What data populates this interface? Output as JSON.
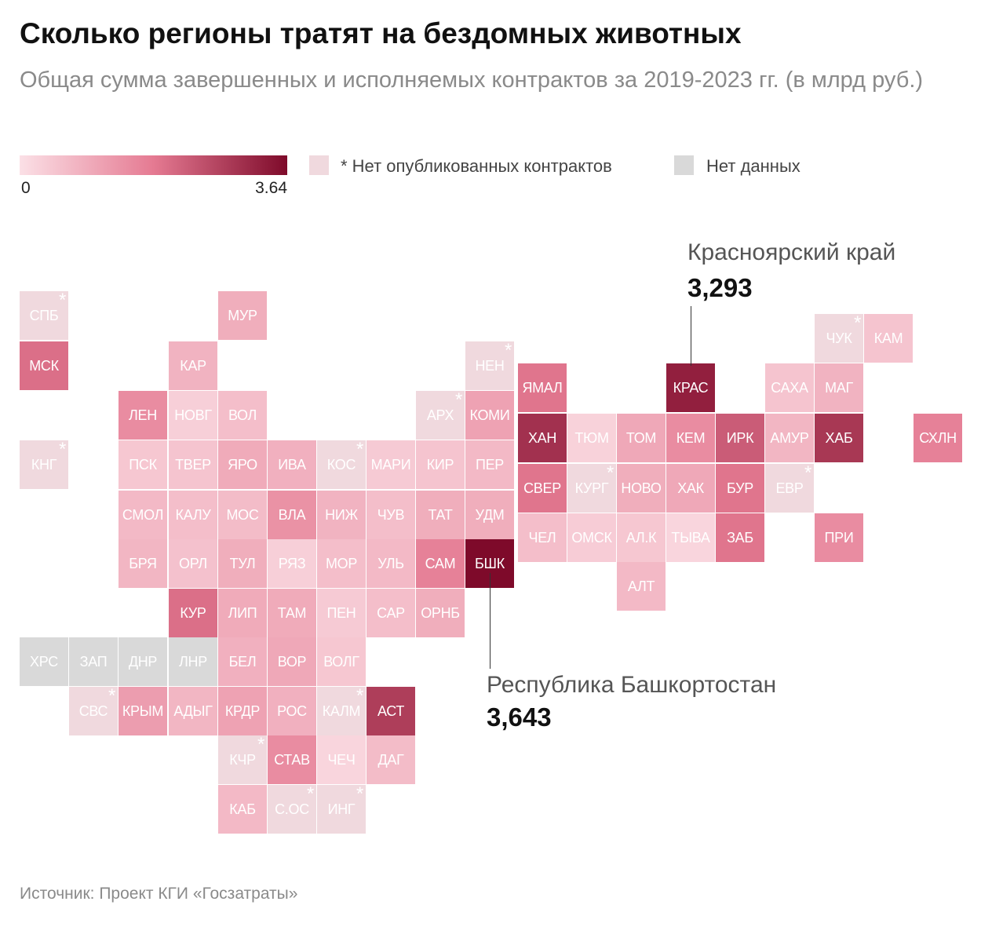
{
  "title": "Сколько регионы тратят на бездомных животных",
  "subtitle": "Общая сумма завершенных и исполняемых контрактов за 2019-2023 гг. (в млрд руб.)",
  "legend": {
    "min_label": "0",
    "max_label": "3.64",
    "no_contracts_label": "* Нет опубликованных контрактов",
    "no_data_label": "Нет данных",
    "colors": {
      "scale_low": "#fbe0e6",
      "scale_mid": "#e57a92",
      "scale_high": "#7e0a2a",
      "no_contracts": "#f0d9de",
      "no_data": "#d9d9d9"
    }
  },
  "callouts": {
    "krasnoyarsk": {
      "name": "Красноярский край",
      "value": "3,293"
    },
    "bashkortostan": {
      "name": "Республика Башкортостан",
      "value": "3,643"
    }
  },
  "source": "Источник: Проект КГИ «Госзатраты»",
  "chart_data": {
    "type": "heatmap",
    "value_range": [
      0,
      3.64
    ],
    "regions": [
      {
        "label": "СПБ",
        "status": "no_contracts",
        "value": 0
      },
      {
        "label": "МУР",
        "status": "data",
        "value": 0.9
      },
      {
        "label": "МСК",
        "status": "data",
        "value": 2.0
      },
      {
        "label": "КАР",
        "status": "data",
        "value": 0.8
      },
      {
        "label": "ЛЕН",
        "status": "data",
        "value": 1.5
      },
      {
        "label": "НОВГ",
        "status": "data",
        "value": 0.3
      },
      {
        "label": "ВОЛ",
        "status": "data",
        "value": 0.6
      },
      {
        "label": "КНГ",
        "status": "no_contracts",
        "value": 0
      },
      {
        "label": "ПСК",
        "status": "data",
        "value": 0.45
      },
      {
        "label": "ТВЕР",
        "status": "data",
        "value": 0.5
      },
      {
        "label": "ЯРО",
        "status": "data",
        "value": 0.95
      },
      {
        "label": "ИВА",
        "status": "data",
        "value": 0.85
      },
      {
        "label": "КОС",
        "status": "no_contracts",
        "value": 0
      },
      {
        "label": "МАРИ",
        "status": "data",
        "value": 0.4
      },
      {
        "label": "КИР",
        "status": "data",
        "value": 0.5
      },
      {
        "label": "ПЕР",
        "status": "data",
        "value": 0.7
      },
      {
        "label": "СМОЛ",
        "status": "data",
        "value": 0.7
      },
      {
        "label": "КАЛУ",
        "status": "data",
        "value": 0.6
      },
      {
        "label": "МОС",
        "status": "data",
        "value": 0.65
      },
      {
        "label": "ВЛА",
        "status": "data",
        "value": 1.4
      },
      {
        "label": "НИЖ",
        "status": "data",
        "value": 0.8
      },
      {
        "label": "ЧУВ",
        "status": "data",
        "value": 0.6
      },
      {
        "label": "ТАТ",
        "status": "data",
        "value": 0.9
      },
      {
        "label": "УДМ",
        "status": "data",
        "value": 0.9
      },
      {
        "label": "БРЯ",
        "status": "data",
        "value": 0.75
      },
      {
        "label": "ОРЛ",
        "status": "data",
        "value": 0.55
      },
      {
        "label": "ТУЛ",
        "status": "data",
        "value": 0.9
      },
      {
        "label": "РЯЗ",
        "status": "data",
        "value": 0.3
      },
      {
        "label": "МОР",
        "status": "data",
        "value": 0.6
      },
      {
        "label": "УЛЬ",
        "status": "data",
        "value": 0.7
      },
      {
        "label": "САМ",
        "status": "data",
        "value": 1.7
      },
      {
        "label": "БШК",
        "status": "data",
        "value": 3.643
      },
      {
        "label": "КУР",
        "status": "data",
        "value": 2.0
      },
      {
        "label": "ЛИП",
        "status": "data",
        "value": 0.95
      },
      {
        "label": "ТАМ",
        "status": "data",
        "value": 0.95
      },
      {
        "label": "ПЕН",
        "status": "data",
        "value": 0.4
      },
      {
        "label": "САР",
        "status": "data",
        "value": 0.6
      },
      {
        "label": "ОРНБ",
        "status": "data",
        "value": 0.9
      },
      {
        "label": "ХРС",
        "status": "no_data",
        "value": null
      },
      {
        "label": "ЗАП",
        "status": "no_data",
        "value": null
      },
      {
        "label": "ДНР",
        "status": "no_data",
        "value": null
      },
      {
        "label": "ЛНР",
        "status": "no_data",
        "value": null
      },
      {
        "label": "БЕЛ",
        "status": "data",
        "value": 0.85
      },
      {
        "label": "ВОР",
        "status": "data",
        "value": 1.0
      },
      {
        "label": "ВОЛГ",
        "status": "data",
        "value": 0.45
      },
      {
        "label": "СВС",
        "status": "no_contracts",
        "value": 0
      },
      {
        "label": "КРЫМ",
        "status": "data",
        "value": 1.2
      },
      {
        "label": "АДЫГ",
        "status": "data",
        "value": 0.75
      },
      {
        "label": "КРДР",
        "status": "data",
        "value": 1.1
      },
      {
        "label": "РОС",
        "status": "data",
        "value": 0.85
      },
      {
        "label": "КАЛМ",
        "status": "no_contracts",
        "value": 0
      },
      {
        "label": "АСТ",
        "status": "data",
        "value": 2.8
      },
      {
        "label": "КЧР",
        "status": "no_contracts",
        "value": 0
      },
      {
        "label": "СТАВ",
        "status": "data",
        "value": 1.5
      },
      {
        "label": "ЧЕЧ",
        "status": "data",
        "value": 0.2
      },
      {
        "label": "ДАГ",
        "status": "data",
        "value": 0.65
      },
      {
        "label": "КАБ",
        "status": "data",
        "value": 0.7
      },
      {
        "label": "С.ОС",
        "status": "no_contracts",
        "value": 0
      },
      {
        "label": "ИНГ",
        "status": "no_contracts",
        "value": 0
      },
      {
        "label": "НЕН",
        "status": "no_contracts",
        "value": 0
      },
      {
        "label": "АРХ",
        "status": "no_contracts",
        "value": 0
      },
      {
        "label": "КОМИ",
        "status": "data",
        "value": 1.1
      },
      {
        "label": "ЯМАЛ",
        "status": "data",
        "value": 1.9
      },
      {
        "label": "ХАН",
        "status": "data",
        "value": 3.0
      },
      {
        "label": "ТЮМ",
        "status": "data",
        "value": 0.25
      },
      {
        "label": "ТОМ",
        "status": "data",
        "value": 1.0
      },
      {
        "label": "КЕМ",
        "status": "data",
        "value": 1.5
      },
      {
        "label": "ИРК",
        "status": "data",
        "value": 2.3
      },
      {
        "label": "КРАС",
        "status": "data",
        "value": 3.293
      },
      {
        "label": "СВЕР",
        "status": "data",
        "value": 1.9
      },
      {
        "label": "КУРГ",
        "status": "no_contracts",
        "value": 0
      },
      {
        "label": "НОВО",
        "status": "data",
        "value": 0.9
      },
      {
        "label": "ХАК",
        "status": "data",
        "value": 1.0
      },
      {
        "label": "БУР",
        "status": "data",
        "value": 1.9
      },
      {
        "label": "ЧЕЛ",
        "status": "data",
        "value": 0.6
      },
      {
        "label": "ОМСК",
        "status": "data",
        "value": 0.35
      },
      {
        "label": "АЛ.К",
        "status": "data",
        "value": 0.45
      },
      {
        "label": "ТЫВА",
        "status": "data",
        "value": 0.2
      },
      {
        "label": "ЗАБ",
        "status": "data",
        "value": 1.9
      },
      {
        "label": "АЛТ",
        "status": "data",
        "value": 0.7
      },
      {
        "label": "ЧУК",
        "status": "no_contracts",
        "value": 0
      },
      {
        "label": "КАМ",
        "status": "data",
        "value": 0.5
      },
      {
        "label": "САХА",
        "status": "data",
        "value": 0.5
      },
      {
        "label": "МАГ",
        "status": "data",
        "value": 0.8
      },
      {
        "label": "АМУР",
        "status": "data",
        "value": 0.75
      },
      {
        "label": "ХАБ",
        "status": "data",
        "value": 2.9
      },
      {
        "label": "ЕВР",
        "status": "no_contracts",
        "value": 0
      },
      {
        "label": "ПРИ",
        "status": "data",
        "value": 1.5
      },
      {
        "label": "СХЛН",
        "status": "data",
        "value": 1.7
      }
    ]
  }
}
